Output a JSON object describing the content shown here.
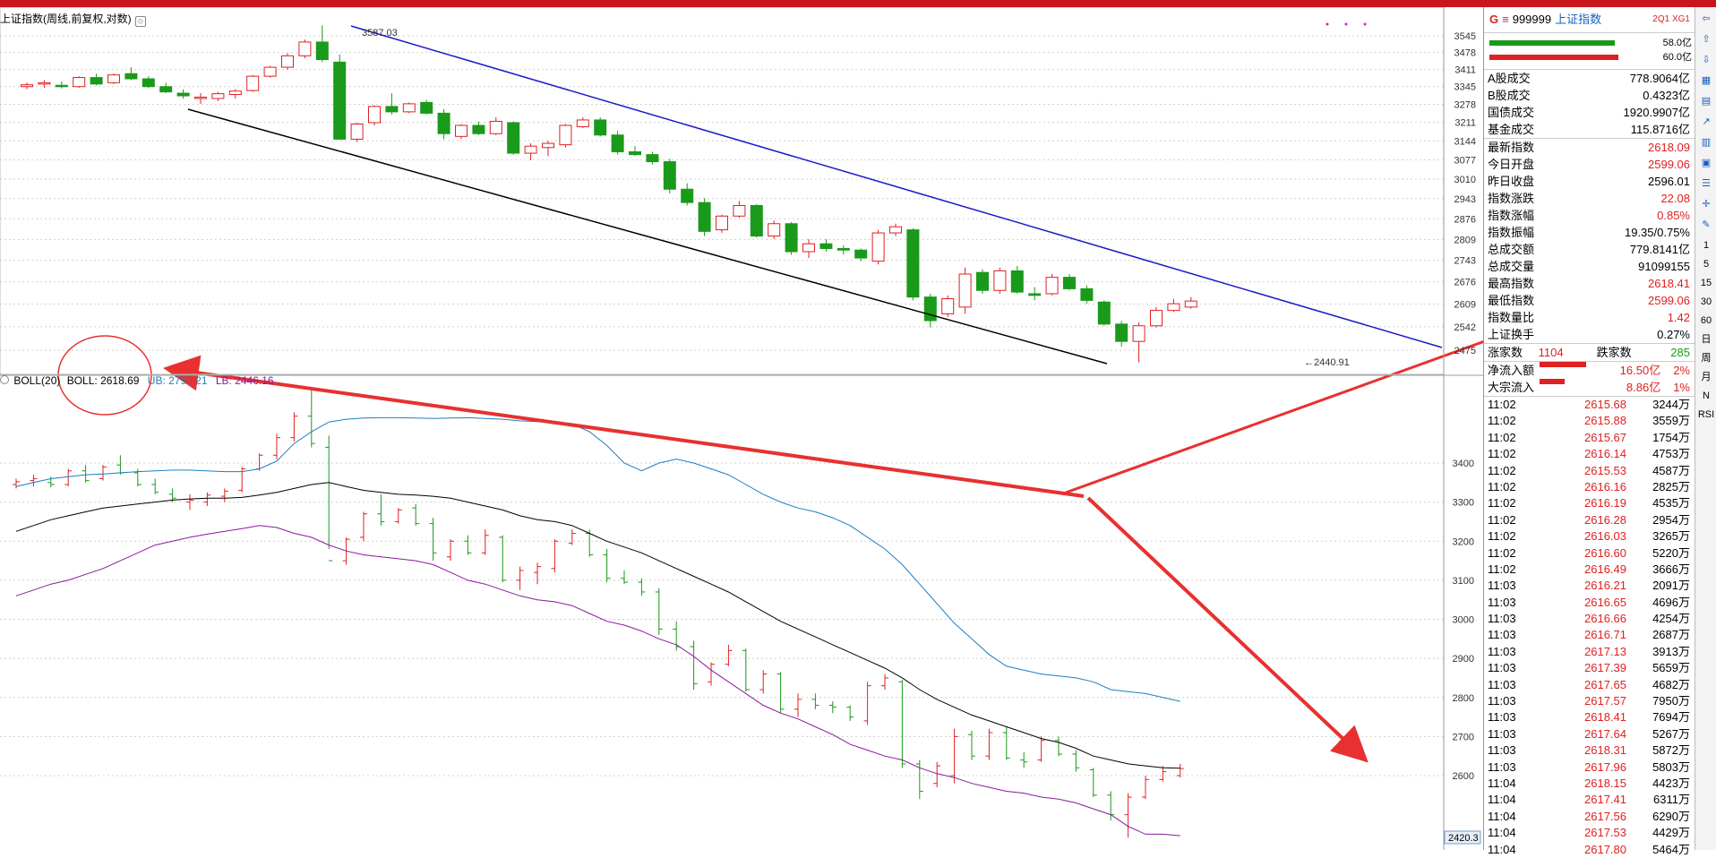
{
  "title": "上证指数(周线,前复权,对数)",
  "main_chart": {
    "y_ticks": [
      "3545",
      "3478",
      "3411",
      "3345",
      "3278",
      "3211",
      "3144",
      "3077",
      "3010",
      "2943",
      "2876",
      "2809",
      "2743",
      "2676",
      "2609",
      "2542",
      "2475"
    ],
    "high_label": "3587.03",
    "low_label": "←2440.91"
  },
  "sub_chart": {
    "indicator": "BOLL(20)",
    "boll_label": "BOLL: 2618.69",
    "ub_label": "UB: 2791.21",
    "lb_label": "LB: 2446.16",
    "y_ticks": [
      "3400",
      "3300",
      "3200",
      "3100",
      "3000",
      "2900",
      "2800",
      "2700",
      "2600"
    ],
    "bottom_value": "2420.3"
  },
  "quote": {
    "market_prefix": "G",
    "separator": "≡",
    "code": "999999",
    "name": "上证指数",
    "tag": "2Q1 XG1",
    "bar1_value": "58.0亿",
    "bar2_value": "60.0亿",
    "group1": [
      {
        "label": "A股成交",
        "value": "778.9064亿"
      },
      {
        "label": "B股成交",
        "value": "0.4323亿"
      },
      {
        "label": "国债成交",
        "value": "1920.9907亿"
      },
      {
        "label": "基金成交",
        "value": "115.8716亿"
      }
    ],
    "group2": [
      {
        "label": "最新指数",
        "value": "2618.09",
        "color": "red"
      },
      {
        "label": "今日开盘",
        "value": "2599.06",
        "color": "red"
      },
      {
        "label": "昨日收盘",
        "value": "2596.01",
        "color": "blk"
      },
      {
        "label": "指数涨跌",
        "value": "22.08",
        "color": "red"
      },
      {
        "label": "指数涨幅",
        "value": "0.85%",
        "color": "red"
      },
      {
        "label": "指数振幅",
        "value": "19.35/0.75%",
        "color": "blk"
      },
      {
        "label": "总成交额",
        "value": "779.8141亿",
        "color": "blk"
      },
      {
        "label": "总成交量",
        "value": "91099155",
        "color": "blk"
      },
      {
        "label": "最高指数",
        "value": "2618.41",
        "color": "red"
      },
      {
        "label": "最低指数",
        "value": "2599.06",
        "color": "red"
      },
      {
        "label": "指数量比",
        "value": "1.42",
        "color": "red"
      },
      {
        "label": "上证换手",
        "value": "0.27%",
        "color": "blk"
      }
    ],
    "advance_label": "涨家数",
    "advance_value": "1104",
    "decline_label": "跌家数",
    "decline_value": "285",
    "net_inflow_label": "净流入额",
    "net_inflow_value": "16.50亿",
    "net_inflow_pct": "2%",
    "block_inflow_label": "大宗流入",
    "block_inflow_value": "8.86亿",
    "block_inflow_pct": "1%"
  },
  "ticks": [
    {
      "t": "11:02",
      "p": "2615.68",
      "v": "3244万"
    },
    {
      "t": "11:02",
      "p": "2615.88",
      "v": "3559万"
    },
    {
      "t": "11:02",
      "p": "2615.67",
      "v": "1754万"
    },
    {
      "t": "11:02",
      "p": "2616.14",
      "v": "4753万"
    },
    {
      "t": "11:02",
      "p": "2615.53",
      "v": "4587万"
    },
    {
      "t": "11:02",
      "p": "2616.16",
      "v": "2825万"
    },
    {
      "t": "11:02",
      "p": "2616.19",
      "v": "4535万"
    },
    {
      "t": "11:02",
      "p": "2616.28",
      "v": "2954万"
    },
    {
      "t": "11:02",
      "p": "2616.03",
      "v": "3265万"
    },
    {
      "t": "11:02",
      "p": "2616.60",
      "v": "5220万"
    },
    {
      "t": "11:02",
      "p": "2616.49",
      "v": "3666万"
    },
    {
      "t": "11:03",
      "p": "2616.21",
      "v": "2091万"
    },
    {
      "t": "11:03",
      "p": "2616.65",
      "v": "4696万"
    },
    {
      "t": "11:03",
      "p": "2616.66",
      "v": "4254万"
    },
    {
      "t": "11:03",
      "p": "2616.71",
      "v": "2687万"
    },
    {
      "t": "11:03",
      "p": "2617.13",
      "v": "3913万"
    },
    {
      "t": "11:03",
      "p": "2617.39",
      "v": "5659万"
    },
    {
      "t": "11:03",
      "p": "2617.65",
      "v": "4682万"
    },
    {
      "t": "11:03",
      "p": "2617.57",
      "v": "7950万"
    },
    {
      "t": "11:03",
      "p": "2618.41",
      "v": "7694万"
    },
    {
      "t": "11:03",
      "p": "2617.64",
      "v": "5267万"
    },
    {
      "t": "11:03",
      "p": "2618.31",
      "v": "5872万"
    },
    {
      "t": "11:03",
      "p": "2617.96",
      "v": "5803万"
    },
    {
      "t": "11:04",
      "p": "2618.15",
      "v": "4423万"
    },
    {
      "t": "11:04",
      "p": "2617.41",
      "v": "6311万"
    },
    {
      "t": "11:04",
      "p": "2617.56",
      "v": "6290万"
    },
    {
      "t": "11:04",
      "p": "2617.53",
      "v": "4429万"
    },
    {
      "t": "11:04",
      "p": "2617.80",
      "v": "5464万"
    }
  ],
  "toolbar": [
    "1",
    "5",
    "15",
    "30",
    "60",
    "日",
    "周",
    "月",
    "N",
    "RSI"
  ],
  "colors": {
    "up": "#e02020",
    "down": "#1a9a1a",
    "ub": "#1a7fc4",
    "mid": "#000000",
    "lb": "#8a1a9b",
    "annotation": "#e83030"
  }
}
